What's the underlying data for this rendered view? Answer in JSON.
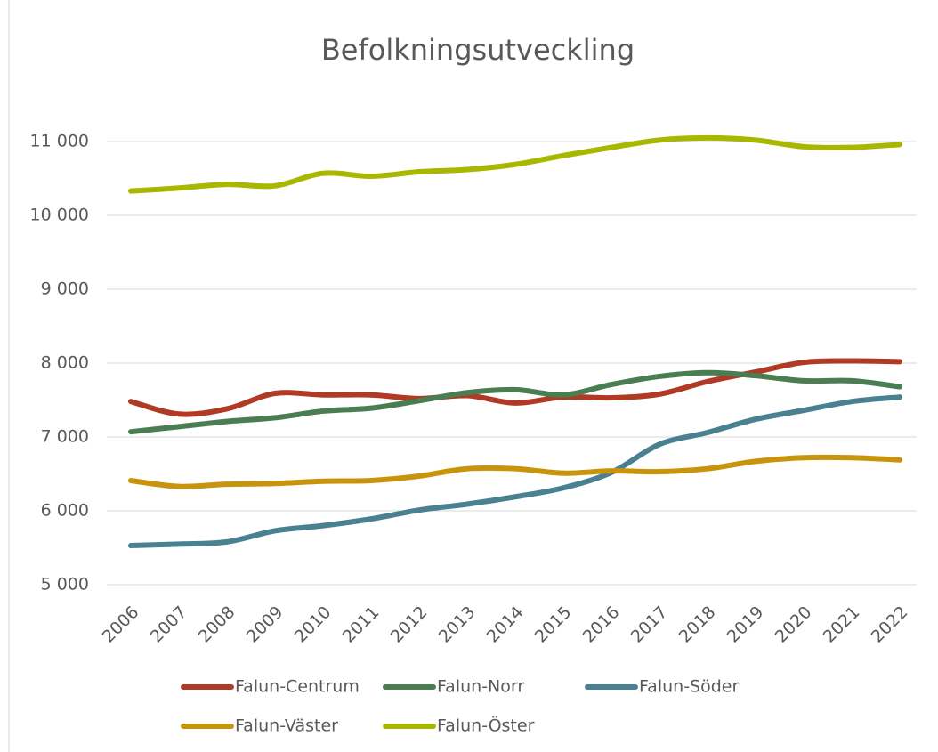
{
  "chart_data": {
    "type": "line",
    "title": "Befolkningsutveckling",
    "categories": [
      "2006",
      "2007",
      "2008",
      "2009",
      "2010",
      "2011",
      "2012",
      "2013",
      "2014",
      "2015",
      "2016",
      "2017",
      "2018",
      "2019",
      "2020",
      "2021",
      "2022"
    ],
    "series": [
      {
        "name": "Falun-Centrum",
        "color": "#b03a24",
        "values": [
          7480,
          7310,
          7380,
          7590,
          7570,
          7570,
          7520,
          7560,
          7460,
          7540,
          7530,
          7580,
          7750,
          7880,
          8010,
          8030,
          8020
        ]
      },
      {
        "name": "Falun-Norr",
        "color": "#4a7d52",
        "values": [
          7070,
          7140,
          7210,
          7260,
          7350,
          7390,
          7490,
          7600,
          7640,
          7570,
          7710,
          7820,
          7870,
          7830,
          7760,
          7760,
          7680
        ]
      },
      {
        "name": "Falun-Söder",
        "color": "#4a8190",
        "values": [
          5530,
          5550,
          5580,
          5730,
          5800,
          5890,
          6010,
          6090,
          6190,
          6310,
          6520,
          6900,
          7060,
          7240,
          7360,
          7480,
          7540
        ]
      },
      {
        "name": "Falun-Väster",
        "color": "#c8940c",
        "values": [
          6410,
          6330,
          6360,
          6370,
          6400,
          6410,
          6470,
          6570,
          6570,
          6510,
          6540,
          6530,
          6570,
          6670,
          6720,
          6720,
          6690
        ]
      },
      {
        "name": "Falun-Öster",
        "color": "#a8b800",
        "values": [
          10330,
          10370,
          10420,
          10400,
          10570,
          10530,
          10590,
          10620,
          10690,
          10810,
          10920,
          11020,
          11050,
          11020,
          10930,
          10920,
          10960
        ]
      }
    ],
    "ylim": [
      5000,
      11000
    ],
    "yticks": [
      {
        "value": 5000,
        "label": "5 000"
      },
      {
        "value": 6000,
        "label": "6 000"
      },
      {
        "value": 7000,
        "label": "7 000"
      },
      {
        "value": 8000,
        "label": "8 000"
      },
      {
        "value": 9000,
        "label": "9 000"
      },
      {
        "value": 10000,
        "label": "10 000"
      },
      {
        "value": 11000,
        "label": "11 000"
      }
    ],
    "grid": true,
    "legend": "bottom"
  }
}
